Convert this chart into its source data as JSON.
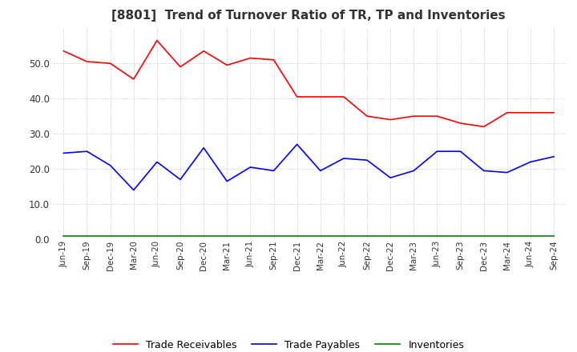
{
  "title": "[8801]  Trend of Turnover Ratio of TR, TP and Inventories",
  "x_labels": [
    "Jun-19",
    "Sep-19",
    "Dec-19",
    "Mar-20",
    "Jun-20",
    "Sep-20",
    "Dec-20",
    "Mar-21",
    "Jun-21",
    "Sep-21",
    "Dec-21",
    "Mar-22",
    "Jun-22",
    "Sep-22",
    "Dec-22",
    "Mar-23",
    "Jun-23",
    "Sep-23",
    "Dec-23",
    "Mar-24",
    "Jun-24",
    "Sep-24"
  ],
  "trade_receivables": [
    53.5,
    50.5,
    50.0,
    45.5,
    56.5,
    49.0,
    53.5,
    49.5,
    51.5,
    51.0,
    40.5,
    40.5,
    40.5,
    35.0,
    34.0,
    35.0,
    35.0,
    33.0,
    32.0,
    36.0,
    36.0,
    36.0
  ],
  "trade_payables": [
    24.5,
    25.0,
    21.0,
    14.0,
    22.0,
    17.0,
    26.0,
    16.5,
    20.5,
    19.5,
    27.0,
    19.5,
    23.0,
    22.5,
    17.5,
    19.5,
    25.0,
    25.0,
    19.5,
    19.0,
    22.0,
    23.5
  ],
  "inventories": [
    1.0,
    1.0,
    1.0,
    1.0,
    1.0,
    1.0,
    1.0,
    1.0,
    1.0,
    1.0,
    1.0,
    1.0,
    1.0,
    1.0,
    1.0,
    1.0,
    1.0,
    1.0,
    1.0,
    1.0,
    1.0,
    1.0
  ],
  "tr_color": "#ff0000",
  "tp_color": "#0000ff",
  "inv_color": "#008000",
  "ylim": [
    0,
    60
  ],
  "yticks": [
    0.0,
    10.0,
    20.0,
    30.0,
    40.0,
    50.0
  ],
  "background_color": "#ffffff",
  "grid_color": "#aaaaaa",
  "legend_labels": [
    "Trade Receivables",
    "Trade Payables",
    "Inventories"
  ]
}
